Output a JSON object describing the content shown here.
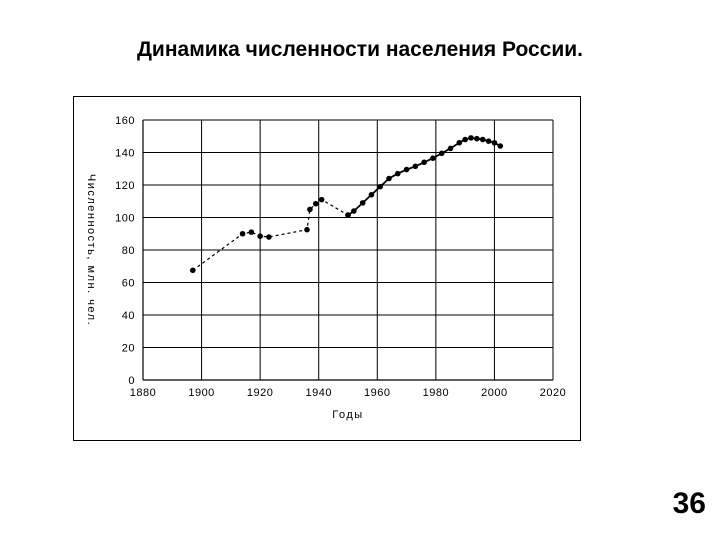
{
  "slide": {
    "title": "Динамика численности населения России.",
    "page_number": "36"
  },
  "chart_data": {
    "type": "line",
    "title": "",
    "xlabel": "Годы",
    "ylabel": "Численность, млн. чел.",
    "xlim": [
      1880,
      2020
    ],
    "ylim": [
      0,
      160
    ],
    "x_ticks": [
      1880,
      1900,
      1920,
      1940,
      1960,
      1980,
      2000,
      2020
    ],
    "y_ticks": [
      0,
      20,
      40,
      60,
      80,
      100,
      120,
      140,
      160
    ],
    "grid": true,
    "series": [
      {
        "style": "dashed",
        "points": [
          [
            1897,
            67.5
          ],
          [
            1914,
            90
          ],
          [
            1917,
            91
          ],
          [
            1920,
            88.5
          ],
          [
            1923,
            88
          ],
          [
            1936,
            92.5
          ],
          [
            1937,
            105
          ],
          [
            1939,
            108.5
          ],
          [
            1941,
            111
          ],
          [
            1950,
            101.5
          ]
        ]
      },
      {
        "style": "solid",
        "points": [
          [
            1950,
            101.5
          ],
          [
            1952,
            104
          ],
          [
            1955,
            109
          ],
          [
            1958,
            114
          ],
          [
            1961,
            119
          ],
          [
            1964,
            124
          ],
          [
            1967,
            127
          ],
          [
            1970,
            129.5
          ],
          [
            1973,
            131.5
          ],
          [
            1976,
            134
          ],
          [
            1979,
            136.5
          ],
          [
            1982,
            139.5
          ],
          [
            1985,
            142.5
          ],
          [
            1988,
            146
          ],
          [
            1990,
            148
          ],
          [
            1992,
            149
          ],
          [
            1994,
            148.5
          ],
          [
            1996,
            148
          ],
          [
            1998,
            147
          ],
          [
            2000,
            146
          ],
          [
            2002,
            144
          ]
        ]
      }
    ]
  }
}
